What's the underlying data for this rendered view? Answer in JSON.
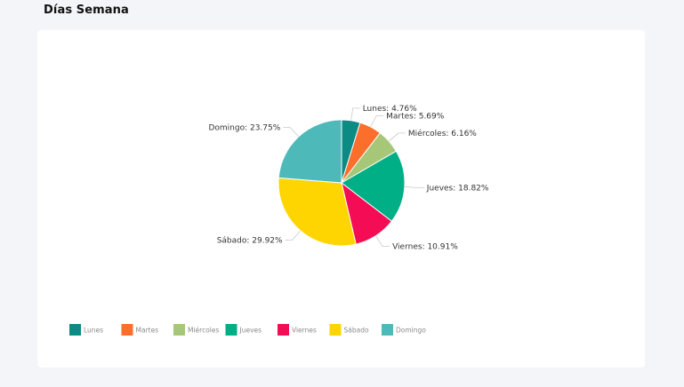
{
  "page": {
    "title": "Días Semana"
  },
  "chart_data": {
    "type": "pie",
    "title": "Días Semana",
    "labels": [
      "Lunes",
      "Martes",
      "Miércoles",
      "Jueves",
      "Viernes",
      "Sábado",
      "Domingo"
    ],
    "values": [
      4.76,
      5.69,
      6.16,
      18.82,
      10.91,
      29.92,
      23.75
    ],
    "value_unit": "%",
    "slice_labels": [
      "Lunes: 4.76%",
      "Martes: 5.69%",
      "Miércoles: 6.16%",
      "Jueves: 18.82%",
      "Viernes: 10.91%",
      "Sábado: 29.92%",
      "Domingo: 23.75%"
    ],
    "colors": [
      "#0d8a84",
      "#fb6e2c",
      "#a6c777",
      "#00af85",
      "#f40d54",
      "#fed500",
      "#4db9b9"
    ],
    "legend": {
      "position": "bottom-left",
      "entries": [
        "Lunes",
        "Martes",
        "Miércoles",
        "Jueves",
        "Viernes",
        "Sábado",
        "Domingo"
      ]
    },
    "start_angle": "top, clockwise"
  }
}
